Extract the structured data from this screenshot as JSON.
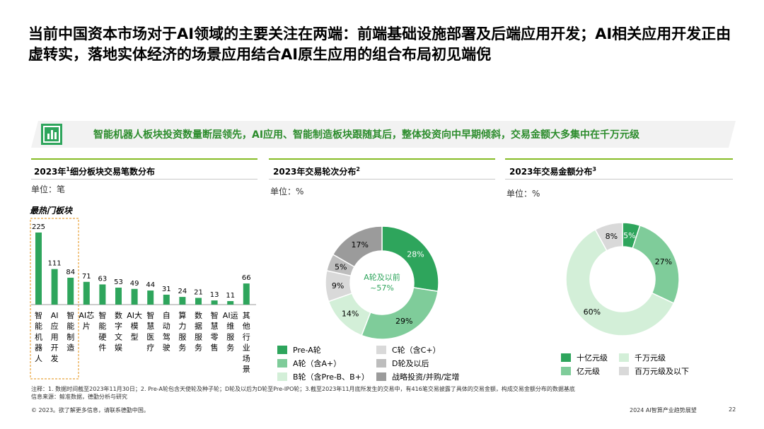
{
  "title": "当前中国资本市场对于AI领域的主要关注在两端：前端基础设施部署及后端应用开发；AI相关应用开发正由虚转实，落地实体经济的场景应用结合AI原生应用的组合布局初见端倪",
  "banner": {
    "icon": "bar-chart-icon",
    "text": "智能机器人板块投资数量断层领先，AI应用、智能制造板块跟随其后，整体投资向中早期倾斜，交易金额大多集中在千万元级"
  },
  "colors": {
    "accent_green": "#86bc25",
    "dark_green": "#2ea55c",
    "mid_green": "#7fcc9a",
    "light_green": "#d3efd8",
    "grey_light": "#d9d9d9",
    "grey_mid": "#bdbdbd",
    "grey_dark": "#9b9b9b",
    "highlight_orange": "#e8a33d"
  },
  "panels": {
    "p1": {
      "title": "2023年",
      "sup": "1",
      "title_rest": "细分板块交易笔数分布",
      "unit": "单位：笔",
      "highlight_label": "最热门板块"
    },
    "p2": {
      "title": "2023年交易轮次分布",
      "sup": "2",
      "unit": "单位：%"
    },
    "p3": {
      "title": "2023年交易金额分布",
      "sup": "3",
      "unit": "单位：%"
    }
  },
  "chart_data": [
    {
      "type": "bar",
      "title": "2023年细分板块交易笔数分布",
      "unit": "单位：笔",
      "categories": [
        "智能机器人",
        "AI应用开发",
        "智能制造",
        "AI芯片",
        "智能硬件",
        "数字文娱",
        "AI大模型",
        "智慧医疗",
        "自动驾驶",
        "算力服务",
        "数据服务",
        "智慧零售",
        "AI运维服务",
        "其他行业场景"
      ],
      "category_lines": [
        [
          "智",
          "能",
          "机",
          "器",
          "人"
        ],
        [
          "AI",
          "应",
          "用",
          "开",
          "发"
        ],
        [
          "智",
          "能",
          "制",
          "造"
        ],
        [
          "AI芯",
          "片"
        ],
        [
          "智",
          "能",
          "硬",
          "件"
        ],
        [
          "数",
          "字",
          "文",
          "娱"
        ],
        [
          "AI大",
          "模",
          "型"
        ],
        [
          "智",
          "慧",
          "医",
          "疗"
        ],
        [
          "自",
          "动",
          "驾",
          "驶"
        ],
        [
          "算",
          "力",
          "服",
          "务"
        ],
        [
          "数",
          "据",
          "服",
          "务"
        ],
        [
          "智",
          "慧",
          "零",
          "售"
        ],
        [
          "AI运",
          "维",
          "服",
          "务"
        ],
        [
          "其",
          "他",
          "行",
          "业",
          "场",
          "景"
        ]
      ],
      "values": [
        225,
        111,
        84,
        71,
        63,
        53,
        49,
        44,
        31,
        24,
        21,
        13,
        11,
        66
      ],
      "highlighted": [
        0,
        1,
        2
      ],
      "highlight_label": "最热门板块"
    },
    {
      "type": "pie",
      "title": "2023年交易轮次分布",
      "unit": "单位：%",
      "center_label": [
        "A轮及以前",
        "~57%"
      ],
      "slices": [
        {
          "name": "Pre-A轮",
          "value": 28,
          "label": "28%",
          "color": "#2ea55c"
        },
        {
          "name": "A轮（含A+）",
          "value": 29,
          "label": "29%",
          "color": "#7fcc9a"
        },
        {
          "name": "B轮（含Pre-B、B+）",
          "value": 14,
          "label": "14%",
          "color": "#d3efd8"
        },
        {
          "name": "C轮（含C+）",
          "value": 9,
          "label": "9%",
          "color": "#d9d9d9"
        },
        {
          "name": "D轮及以后",
          "value": 5,
          "label": "5%",
          "color": "#bdbdbd"
        },
        {
          "name": "战略投资/并购/定增",
          "value": 17,
          "label": "17%",
          "color": "#9b9b9b"
        }
      ],
      "legend_order": [
        "Pre-A轮",
        "C轮（含C+）",
        "A轮（含A+）",
        "D轮及以后",
        "B轮（含Pre-B、B+）",
        "战略投资/并购/定增"
      ]
    },
    {
      "type": "pie",
      "title": "2023年交易金额分布",
      "unit": "单位：%",
      "slices": [
        {
          "name": "十亿元级",
          "value": 5,
          "label": "5%",
          "color": "#2ea55c"
        },
        {
          "name": "亿元级",
          "value": 27,
          "label": "27%",
          "color": "#7fcc9a"
        },
        {
          "name": "千万元级",
          "value": 60,
          "label": "60%",
          "color": "#d3efd8"
        },
        {
          "name": "百万元级及以下",
          "value": 8,
          "label": "8%",
          "color": "#d9d9d9"
        }
      ],
      "legend_order": [
        "十亿元级",
        "千万元级",
        "亿元级",
        "百万元级及以下"
      ]
    }
  ],
  "note_line1": "注释：1. 数据时间截至2023年11月30日；2. Pre-A轮包含天使轮及种子轮；D轮及以后为D轮至Pre-IPO轮；3.截至2023年11月底所发生的交易中，有416笔交易披露了具体的交易金额，构成交易金额分布的数据基底",
  "note_line2": "信息来源：鲸准数据，德勤分析与研究",
  "footer": {
    "left": "© 2023。欲了解更多信息，请联系德勤中国。",
    "right": "2024 AI智算产业趋势展望",
    "page": "22"
  }
}
